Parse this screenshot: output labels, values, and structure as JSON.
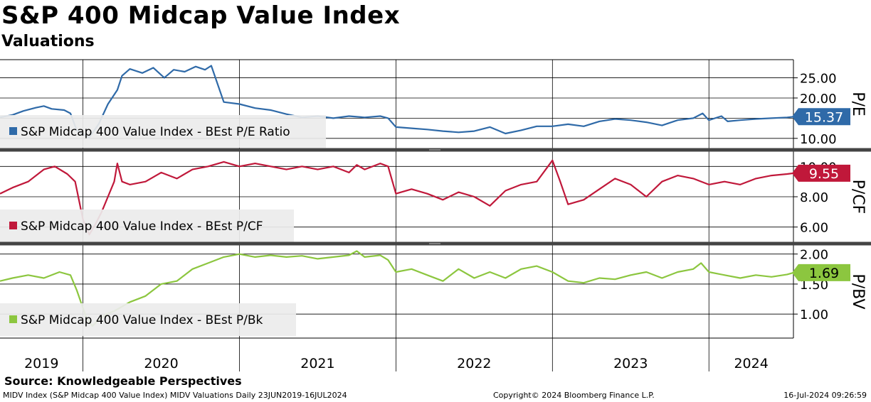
{
  "header": {
    "title": "S&P 400 Midcap Value Index",
    "subtitle": "Valuations"
  },
  "footer": {
    "source": "Source: Knowledgeable Perspectives",
    "left": "MIDV Index (S&P Midcap 400 Value Index) MIDV Valuations  Daily 23JUN2019-16JUL2024",
    "center": "Copyright© 2024 Bloomberg Finance L.P.",
    "right": "16-Jul-2024 09:26:59"
  },
  "chart_data": {
    "type": "line",
    "x_range": [
      2019.47,
      2024.54
    ],
    "x_tick_labels": [
      "2019",
      "2020",
      "2021",
      "2022",
      "2023",
      "2024"
    ],
    "year_boundaries": [
      2020,
      2021,
      2022,
      2023,
      2024
    ],
    "panels": [
      {
        "axis_title": "P/E",
        "legend": "S&P Midcap 400 Value Index - BEst P/E Ratio",
        "color": "#2f6aa8",
        "ylim": [
          7.5,
          29.5
        ],
        "yticks": [
          10,
          15,
          20,
          25
        ],
        "ytick_labels": [
          "10.00",
          "",
          "20.00",
          "25.00"
        ],
        "last_value": 15.37,
        "last_label": "15.37",
        "x": [
          2019.47,
          2019.55,
          2019.62,
          2019.7,
          2019.75,
          2019.8,
          2019.88,
          2019.92,
          2019.96,
          2020.04,
          2020.1,
          2020.16,
          2020.22,
          2020.25,
          2020.3,
          2020.38,
          2020.45,
          2020.52,
          2020.58,
          2020.65,
          2020.72,
          2020.78,
          2020.82,
          2020.9,
          2021.0,
          2021.1,
          2021.2,
          2021.3,
          2021.4,
          2021.5,
          2021.6,
          2021.7,
          2021.8,
          2021.9,
          2021.95,
          2022.0,
          2022.1,
          2022.2,
          2022.3,
          2022.4,
          2022.5,
          2022.6,
          2022.7,
          2022.8,
          2022.9,
          2023.0,
          2023.1,
          2023.2,
          2023.3,
          2023.4,
          2023.5,
          2023.6,
          2023.7,
          2023.8,
          2023.9,
          2023.96,
          2024.0,
          2024.08,
          2024.12,
          2024.2,
          2024.3,
          2024.4,
          2024.5,
          2024.54
        ],
        "y": [
          15.2,
          15.8,
          16.8,
          17.6,
          18.0,
          17.3,
          17.0,
          16.2,
          12.0,
          10.2,
          13.5,
          18.5,
          22.0,
          25.5,
          27.2,
          26.2,
          27.5,
          25.0,
          27.0,
          26.5,
          27.8,
          27.0,
          28.0,
          19.0,
          18.5,
          17.5,
          17.0,
          16.0,
          15.2,
          15.5,
          15.0,
          15.5,
          15.2,
          15.5,
          15.0,
          12.8,
          12.5,
          12.2,
          11.8,
          11.5,
          11.8,
          12.8,
          11.2,
          12.0,
          13.0,
          13.0,
          13.5,
          13.0,
          14.2,
          14.8,
          14.5,
          14.0,
          13.2,
          14.5,
          15.0,
          16.2,
          14.5,
          15.5,
          14.2,
          14.5,
          14.8,
          15.0,
          15.2,
          15.37
        ]
      },
      {
        "axis_title": "P/CF",
        "legend": "S&P Midcap 400 Value Index - BEst P/CF",
        "color": "#c0183a",
        "ylim": [
          5.0,
          11.0
        ],
        "yticks": [
          6,
          8,
          10
        ],
        "ytick_labels": [
          "6.00",
          "8.00",
          "10.00"
        ],
        "last_value": 9.55,
        "last_label": "9.55",
        "x": [
          2019.47,
          2019.55,
          2019.65,
          2019.75,
          2019.82,
          2019.9,
          2019.95,
          2020.0,
          2020.04,
          2020.08,
          2020.12,
          2020.16,
          2020.2,
          2020.22,
          2020.25,
          2020.3,
          2020.4,
          2020.5,
          2020.6,
          2020.7,
          2020.8,
          2020.9,
          2021.0,
          2021.1,
          2021.2,
          2021.3,
          2021.4,
          2021.5,
          2021.6,
          2021.7,
          2021.75,
          2021.8,
          2021.9,
          2021.95,
          2022.0,
          2022.1,
          2022.2,
          2022.3,
          2022.4,
          2022.5,
          2022.6,
          2022.7,
          2022.8,
          2022.9,
          2023.0,
          2023.05,
          2023.1,
          2023.2,
          2023.3,
          2023.4,
          2023.5,
          2023.6,
          2023.7,
          2023.8,
          2023.9,
          2024.0,
          2024.1,
          2024.2,
          2024.3,
          2024.4,
          2024.5,
          2024.54
        ],
        "y": [
          8.2,
          8.6,
          9.0,
          9.8,
          10.0,
          9.5,
          9.0,
          6.5,
          5.5,
          6.2,
          7.0,
          8.0,
          9.0,
          10.2,
          9.0,
          8.8,
          9.0,
          9.6,
          9.2,
          9.8,
          10.0,
          10.3,
          10.0,
          10.2,
          10.0,
          9.8,
          10.0,
          9.8,
          10.0,
          9.6,
          10.1,
          9.8,
          10.2,
          10.0,
          8.2,
          8.5,
          8.2,
          7.8,
          8.3,
          8.0,
          7.4,
          8.4,
          8.8,
          9.0,
          10.4,
          9.0,
          7.5,
          7.8,
          8.5,
          9.2,
          8.8,
          8.0,
          9.0,
          9.4,
          9.2,
          8.8,
          9.0,
          8.8,
          9.2,
          9.4,
          9.5,
          9.55
        ]
      },
      {
        "axis_title": "P/BV",
        "legend": "S&P Midcap 400 Value Index - BEst P/Bk",
        "color": "#8cc63f",
        "ylim": [
          0.6,
          2.15
        ],
        "yticks": [
          1.0,
          1.5,
          2.0
        ],
        "ytick_labels": [
          "1.00",
          "1.50",
          "2.00"
        ],
        "last_value": 1.69,
        "last_label": "1.69",
        "x": [
          2019.47,
          2019.55,
          2019.65,
          2019.75,
          2019.85,
          2019.92,
          2019.96,
          2020.02,
          2020.06,
          2020.1,
          2020.15,
          2020.2,
          2020.3,
          2020.4,
          2020.5,
          2020.6,
          2020.7,
          2020.8,
          2020.9,
          2021.0,
          2021.1,
          2021.2,
          2021.3,
          2021.4,
          2021.5,
          2021.6,
          2021.7,
          2021.75,
          2021.8,
          2021.9,
          2021.95,
          2022.0,
          2022.1,
          2022.2,
          2022.3,
          2022.4,
          2022.5,
          2022.6,
          2022.7,
          2022.8,
          2022.9,
          2023.0,
          2023.1,
          2023.2,
          2023.3,
          2023.4,
          2023.5,
          2023.6,
          2023.7,
          2023.8,
          2023.9,
          2023.95,
          2024.0,
          2024.1,
          2024.2,
          2024.3,
          2024.4,
          2024.5,
          2024.54
        ],
        "y": [
          1.55,
          1.6,
          1.65,
          1.6,
          1.7,
          1.65,
          1.4,
          0.95,
          0.8,
          0.9,
          1.0,
          1.05,
          1.2,
          1.3,
          1.5,
          1.55,
          1.75,
          1.85,
          1.95,
          2.0,
          1.95,
          1.98,
          1.95,
          1.97,
          1.92,
          1.95,
          1.98,
          2.05,
          1.95,
          1.98,
          1.9,
          1.7,
          1.75,
          1.65,
          1.55,
          1.75,
          1.6,
          1.7,
          1.6,
          1.75,
          1.8,
          1.7,
          1.55,
          1.52,
          1.6,
          1.58,
          1.65,
          1.7,
          1.6,
          1.7,
          1.75,
          1.85,
          1.7,
          1.65,
          1.6,
          1.65,
          1.62,
          1.66,
          1.69
        ]
      }
    ]
  }
}
